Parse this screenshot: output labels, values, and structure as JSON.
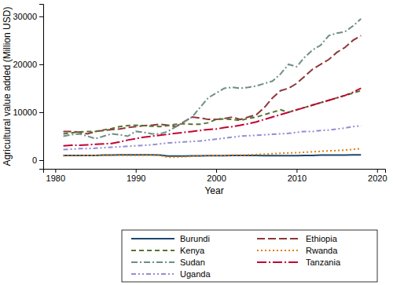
{
  "chart_data": {
    "type": "line",
    "x_label": "Year",
    "y_label": "Agricultural value added (Million USD)",
    "x": [
      1981,
      1982,
      1983,
      1984,
      1985,
      1986,
      1987,
      1988,
      1989,
      1990,
      1991,
      1992,
      1993,
      1994,
      1995,
      1996,
      1997,
      1998,
      1999,
      2000,
      2001,
      2002,
      2003,
      2004,
      2005,
      2006,
      2007,
      2008,
      2009,
      2010,
      2011,
      2012,
      2013,
      2014,
      2015,
      2016,
      2017,
      2018
    ],
    "xlim": [
      1978.5,
      2021
    ],
    "xticks": [
      1980,
      1990,
      2000,
      2010,
      2020
    ],
    "ylim": [
      -1800,
      32600
    ],
    "yticks": [
      0,
      10000,
      20000,
      30000
    ],
    "grid": false,
    "legend": "bottom",
    "series": [
      {
        "name": "Burundi",
        "color": "#1a476f",
        "line_style": "solid",
        "values": [
          1000,
          1000,
          1000,
          1000,
          1000,
          1050,
          1050,
          1100,
          1100,
          1100,
          1100,
          1100,
          1050,
          850,
          850,
          850,
          900,
          900,
          950,
          950,
          950,
          1000,
          1000,
          1000,
          1000,
          950,
          950,
          950,
          950,
          950,
          1000,
          1000,
          1050,
          1050,
          1050,
          1050,
          1100,
          1100
        ]
      },
      {
        "name": "Ethiopia",
        "color": "#90353b",
        "line_style": "longdash",
        "values": [
          6000,
          6000,
          5800,
          5500,
          6000,
          6200,
          6400,
          6500,
          6800,
          7000,
          7200,
          7300,
          7500,
          7300,
          7000,
          8000,
          9000,
          8800,
          8500,
          8500,
          8700,
          9000,
          8500,
          9000,
          9500,
          11000,
          13000,
          14500,
          15000,
          16000,
          17500,
          19000,
          20000,
          21000,
          22500,
          23500,
          25000,
          26000
        ]
      },
      {
        "name": "Kenya",
        "color": "#55752f",
        "line_style": "dash",
        "values": [
          5500,
          5700,
          5900,
          6000,
          6000,
          6300,
          6600,
          7000,
          7200,
          7300,
          7200,
          7100,
          7000,
          7200,
          7500,
          7600,
          7500,
          7500,
          7800,
          8500,
          8600,
          8500,
          8300,
          8700,
          9000,
          9500,
          10000,
          10500,
          10000,
          10500,
          11000,
          11500,
          12000,
          12500,
          13000,
          13500,
          14000,
          14500
        ]
      },
      {
        "name": "Rwanda",
        "color": "#e37e00",
        "line_style": "dot",
        "values": [
          900,
          950,
          950,
          1000,
          1000,
          1000,
          1050,
          1050,
          1000,
          1000,
          1050,
          1050,
          1000,
          600,
          650,
          700,
          800,
          900,
          950,
          1000,
          1000,
          1050,
          1050,
          1100,
          1200,
          1250,
          1350,
          1450,
          1500,
          1550,
          1650,
          1750,
          1850,
          1950,
          2000,
          2100,
          2250,
          2400
        ]
      },
      {
        "name": "Sudan",
        "color": "#6e8e84",
        "line_style": "dashdot",
        "values": [
          5000,
          5300,
          5500,
          5000,
          4500,
          5000,
          5500,
          5300,
          5000,
          6000,
          5800,
          5500,
          5500,
          6000,
          7000,
          8000,
          9000,
          11000,
          13000,
          14000,
          15000,
          15200,
          15000,
          15200,
          15500,
          16000,
          16500,
          18000,
          20000,
          19500,
          21500,
          23000,
          24000,
          26000,
          26500,
          26800,
          28000,
          29500
        ]
      },
      {
        "name": "Tanzania",
        "color": "#c10534",
        "line_style": "longdashdot",
        "values": [
          3000,
          3100,
          3100,
          3200,
          3300,
          3400,
          3500,
          3800,
          4200,
          4500,
          4800,
          5000,
          5200,
          5400,
          5600,
          5800,
          6000,
          6200,
          6400,
          6500,
          6800,
          7000,
          7300,
          7600,
          8000,
          8500,
          9000,
          9500,
          10000,
          10500,
          11000,
          11500,
          12000,
          12500,
          13000,
          13500,
          14200,
          15000
        ]
      },
      {
        "name": "Uganda",
        "color": "#938dd2",
        "line_style": "dashdotdot",
        "values": [
          2200,
          2300,
          2400,
          2400,
          2500,
          2600,
          2700,
          2800,
          2900,
          3000,
          3100,
          3200,
          3400,
          3600,
          3700,
          3800,
          3900,
          4000,
          4200,
          4400,
          4600,
          4800,
          5000,
          5100,
          5200,
          5300,
          5400,
          5500,
          5600,
          5800,
          6000,
          6000,
          6200,
          6300,
          6500,
          6700,
          7000,
          7200
        ]
      }
    ]
  }
}
